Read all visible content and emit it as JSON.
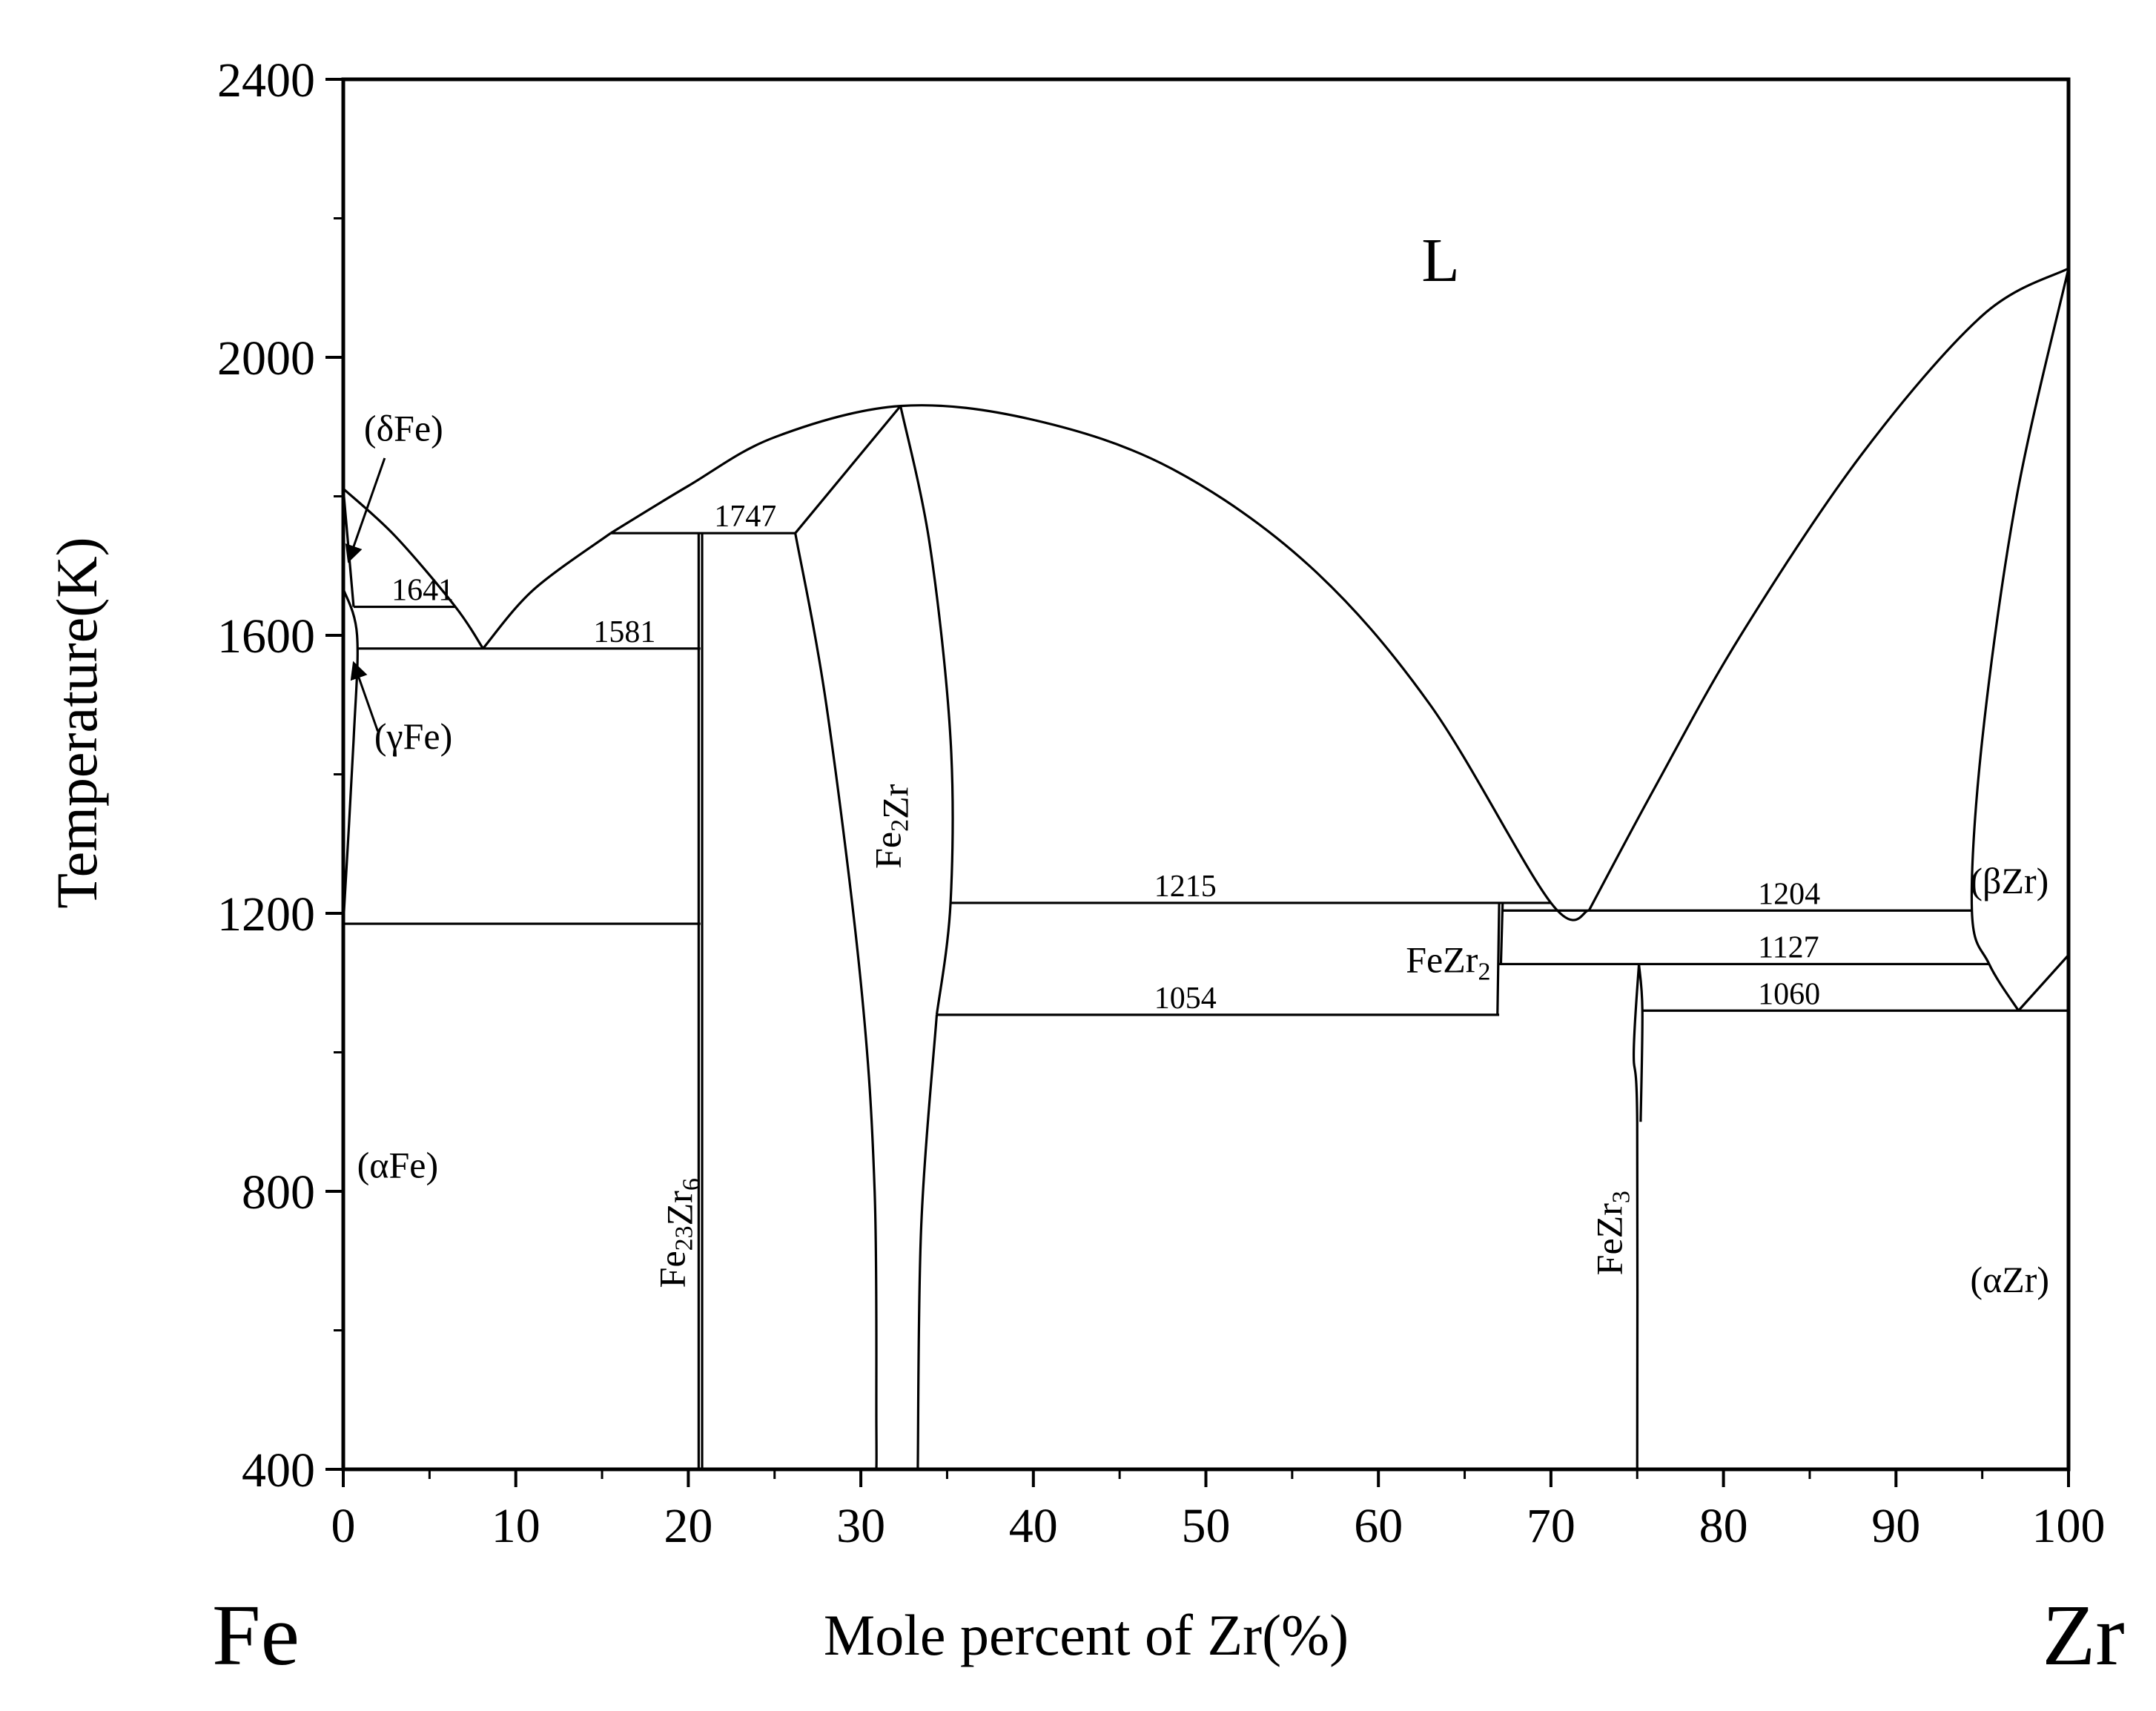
{
  "chart_data": {
    "type": "phase-diagram",
    "title": "",
    "xlabel": "Mole percent of Zr(%)",
    "ylabel": "Temperature(K)",
    "xlim": [
      0,
      100
    ],
    "ylim": [
      400,
      2400
    ],
    "xticks": [
      "0",
      "10",
      "20",
      "30",
      "40",
      "50",
      "60",
      "70",
      "80",
      "90",
      "100"
    ],
    "yticks": [
      "400",
      "800",
      "1200",
      "1600",
      "2000",
      "2400"
    ],
    "xtick_values": [
      0,
      10,
      20,
      30,
      40,
      50,
      60,
      70,
      80,
      90,
      100
    ],
    "ytick_values": [
      400,
      800,
      1200,
      1600,
      2000,
      2400
    ],
    "left_element": "Fe",
    "right_element": "Zr",
    "phase_labels": [
      {
        "id": "liquid",
        "text": "L",
        "x": 62.5,
        "y": 2110,
        "size": "big"
      },
      {
        "id": "delta-fe",
        "text": "(δFe)",
        "x": 1.2,
        "y": 1880
      },
      {
        "id": "gamma-fe",
        "text": "(γFe)",
        "x": 1.8,
        "y": 1437
      },
      {
        "id": "alpha-fe",
        "text": "(αFe)",
        "x": 0.8,
        "y": 820
      },
      {
        "id": "beta-zr",
        "text": "(βZr)",
        "x": 94.3,
        "y": 1229
      },
      {
        "id": "alpha-zr",
        "text": "(αZr)",
        "x": 94.3,
        "y": 655
      }
    ],
    "compound_labels": [
      {
        "id": "fe2zr",
        "base1": "Fe",
        "sub": "2",
        "base2": "Zr",
        "x": 32.3,
        "y": 1325
      },
      {
        "id": "fe23zr6",
        "base1": "Fe",
        "sub": "23",
        "base2": "Zr",
        "sub2": "6",
        "x": 19.8,
        "y": 740
      },
      {
        "id": "fezr3",
        "base1": "FeZr",
        "sub": "3",
        "x": 74.1,
        "y": 740
      },
      {
        "id": "fezr2",
        "base1": "FeZr",
        "sub": "2",
        "x": 66.5,
        "y": 1115
      }
    ],
    "invariants": [
      {
        "label": "1747",
        "T": 1747,
        "xmin": 15.5,
        "xmax": 26.2,
        "label_x": 21.5
      },
      {
        "label": "1641",
        "T": 1641,
        "xmin": 0.6,
        "xmax": 6.5,
        "label_x": 2.8
      },
      {
        "label": "1581",
        "T": 1581,
        "xmin": 0.8,
        "xmax": 20.7,
        "label_x": 14.5
      },
      {
        "label": "1215",
        "T": 1215,
        "xmin": 35.2,
        "xmax": 70.0,
        "label_x": 47.0
      },
      {
        "label": "1204",
        "T": 1204,
        "xmin": 67.2,
        "xmax": 94.4,
        "label_x": 82.0
      },
      {
        "label": "1127",
        "T": 1127,
        "xmin": 67.0,
        "xmax": 95.4,
        "label_x": 82.0
      },
      {
        "label": "1060",
        "T": 1060,
        "xmin": 75.3,
        "xmax": 100,
        "label_x": 82.0
      },
      {
        "label": "1054",
        "T": 1054,
        "xmin": 34.4,
        "xmax": 67.0,
        "label_x": 47.0
      }
    ],
    "horizontal_lines": [
      {
        "T": 1185,
        "xmin": 0,
        "xmax": 20.7
      }
    ],
    "boundaries": [
      {
        "name": "liquidus-fe-side",
        "points": [
          [
            0,
            1811
          ],
          [
            3,
            1743
          ],
          [
            6.5,
            1641
          ],
          [
            8.1,
            1581
          ]
        ]
      },
      {
        "name": "liquidus-fe23zr6",
        "points": [
          [
            8.1,
            1581
          ],
          [
            11,
            1665
          ],
          [
            15.5,
            1747
          ]
        ]
      },
      {
        "name": "liquidus-fe2zr-dome",
        "points": [
          [
            15.5,
            1747
          ],
          [
            20,
            1815
          ],
          [
            25,
            1885
          ],
          [
            32.3,
            1930
          ],
          [
            40,
            1910
          ],
          [
            48,
            1840
          ],
          [
            56,
            1700
          ],
          [
            63,
            1500
          ],
          [
            70,
            1215
          ],
          [
            72.2,
            1204
          ]
        ]
      },
      {
        "name": "liquidus-zr-side",
        "points": [
          [
            72.2,
            1204
          ],
          [
            76,
            1380
          ],
          [
            81,
            1600
          ],
          [
            88,
            1860
          ],
          [
            95,
            2060
          ],
          [
            100,
            2128
          ]
        ]
      },
      {
        "name": "solidus-beta-zr",
        "points": [
          [
            100,
            2128
          ],
          [
            97,
            1800
          ],
          [
            95,
            1450
          ],
          [
            94.4,
            1204
          ],
          [
            95.4,
            1127
          ],
          [
            97.1,
            1060
          ]
        ]
      },
      {
        "name": "beta-zr-solvus-right",
        "points": [
          [
            97.1,
            1060
          ],
          [
            100,
            1140
          ]
        ]
      },
      {
        "name": "fe2zr-left",
        "points": [
          [
            26.2,
            1747
          ],
          [
            32.3,
            1930
          ]
        ]
      },
      {
        "name": "fe2zr-left-solvus",
        "points": [
          [
            26.2,
            1747
          ],
          [
            28,
            1500
          ],
          [
            30,
            1100
          ],
          [
            30.8,
            800
          ],
          [
            30.9,
            460
          ],
          [
            30.9,
            400
          ]
        ]
      },
      {
        "name": "fe2zr-right",
        "points": [
          [
            32.3,
            1930
          ],
          [
            34,
            1730
          ],
          [
            35.2,
            1450
          ],
          [
            35.2,
            1215
          ],
          [
            34.4,
            1054
          ]
        ]
      },
      {
        "name": "fe2zr-right-solvus",
        "points": [
          [
            34.4,
            1054
          ],
          [
            33.5,
            750
          ],
          [
            33.3,
            400
          ]
        ]
      },
      {
        "name": "fe23zr6-left",
        "points": [
          [
            20.6,
            1747
          ],
          [
            20.6,
            400
          ]
        ]
      },
      {
        "name": "fe23zr6-right",
        "points": [
          [
            20.8,
            1747
          ],
          [
            20.8,
            400
          ]
        ]
      },
      {
        "name": "fezr2-left",
        "points": [
          [
            67.0,
            1215
          ],
          [
            66.9,
            1054
          ]
        ]
      },
      {
        "name": "fezr2-right",
        "points": [
          [
            67.2,
            1215
          ],
          [
            67.1,
            1127
          ]
        ]
      },
      {
        "name": "fezr3-left",
        "points": [
          [
            75.1,
            1127
          ],
          [
            74.8,
            1000
          ],
          [
            75.0,
            900
          ],
          [
            75.0,
            400
          ]
        ]
      },
      {
        "name": "fezr3-right",
        "points": [
          [
            75.1,
            1127
          ],
          [
            75.3,
            1060
          ],
          [
            75.2,
            900
          ]
        ]
      },
      {
        "name": "gamma-loop",
        "points": [
          [
            0,
            1667
          ],
          [
            0.8,
            1600
          ],
          [
            0.6,
            1450
          ],
          [
            0,
            1185
          ]
        ]
      },
      {
        "name": "delta-solvus",
        "points": [
          [
            0,
            1811
          ],
          [
            0.6,
            1641
          ]
        ]
      },
      {
        "name": "alpha-zr-boundary",
        "points": [
          [
            100,
            1060
          ],
          [
            100,
            1000
          ]
        ]
      }
    ],
    "arrows": [
      {
        "from": [
          2.4,
          1855
        ],
        "to": [
          0.35,
          1710
        ]
      },
      {
        "from": [
          2.0,
          1462
        ],
        "to": [
          0.65,
          1557
        ]
      }
    ]
  }
}
